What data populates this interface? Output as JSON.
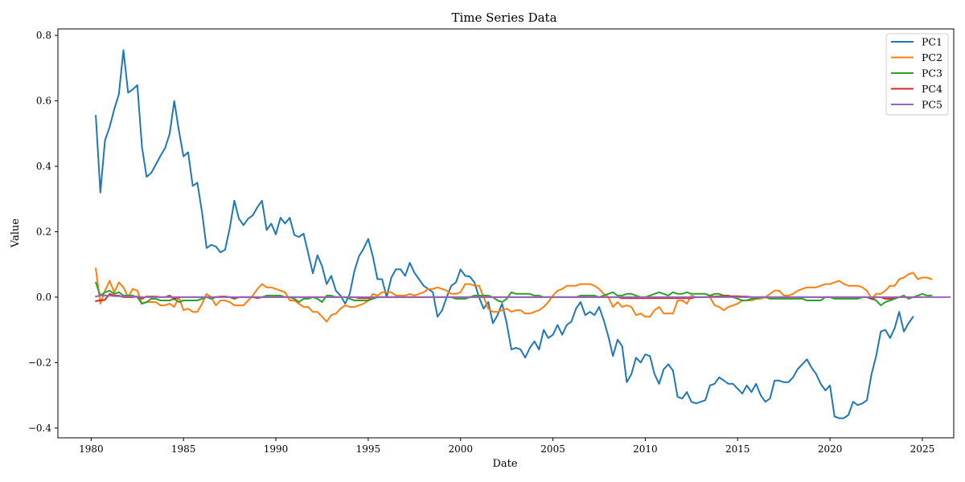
{
  "chart_data": {
    "type": "line",
    "title": "Time Series Data",
    "xlabel": "Date",
    "ylabel": "Value",
    "x_date_range": [
      "1980-04-01",
      "2024-07-01"
    ],
    "x_step": "quarter",
    "xlim": [
      1978.2,
      2026.7
    ],
    "ylim": [
      -0.43,
      0.82
    ],
    "xticks": [
      1980,
      1985,
      1990,
      1995,
      2000,
      2005,
      2010,
      2015,
      2020,
      2025
    ],
    "xtick_labels": [
      "1980",
      "1985",
      "1990",
      "1995",
      "2000",
      "2005",
      "2010",
      "2015",
      "2020",
      "2025"
    ],
    "yticks": [
      -0.4,
      -0.2,
      0.0,
      0.2,
      0.4,
      0.6,
      0.8
    ],
    "ytick_labels": [
      "−0.4",
      "−0.2",
      "0.0",
      "0.2",
      "0.4",
      "0.6",
      "0.8"
    ],
    "grid": false,
    "legend_position": "top-right",
    "series": [
      {
        "name": "PC1",
        "color": "#1f77b4",
        "values": [
          0.555,
          0.32,
          0.48,
          0.52,
          0.575,
          0.62,
          0.755,
          0.625,
          0.635,
          0.648,
          0.46,
          0.368,
          0.38,
          0.405,
          0.432,
          0.455,
          0.5,
          0.6,
          0.51,
          0.43,
          0.443,
          0.34,
          0.35,
          0.26,
          0.15,
          0.16,
          0.155,
          0.137,
          0.145,
          0.21,
          0.295,
          0.24,
          0.22,
          0.24,
          0.25,
          0.275,
          0.295,
          0.205,
          0.225,
          0.192,
          0.243,
          0.225,
          0.243,
          0.19,
          0.184,
          0.194,
          0.135,
          0.073,
          0.128,
          0.095,
          0.04,
          0.065,
          0.02,
          0.005,
          -0.02,
          0.01,
          0.08,
          0.125,
          0.148,
          0.178,
          0.125,
          0.055,
          0.055,
          0.0,
          0.06,
          0.085,
          0.085,
          0.065,
          0.105,
          0.075,
          0.055,
          0.035,
          0.025,
          0.015,
          -0.06,
          -0.04,
          0.0,
          0.035,
          0.045,
          0.085,
          0.065,
          0.063,
          0.045,
          0.0,
          -0.035,
          -0.015,
          -0.08,
          -0.055,
          -0.02,
          -0.08,
          -0.16,
          -0.155,
          -0.16,
          -0.185,
          -0.155,
          -0.135,
          -0.16,
          -0.1,
          -0.125,
          -0.115,
          -0.085,
          -0.115,
          -0.085,
          -0.075,
          -0.035,
          -0.015,
          -0.055,
          -0.045,
          -0.055,
          -0.03,
          -0.07,
          -0.12,
          -0.18,
          -0.13,
          -0.15,
          -0.26,
          -0.235,
          -0.185,
          -0.2,
          -0.175,
          -0.18,
          -0.235,
          -0.265,
          -0.22,
          -0.205,
          -0.225,
          -0.305,
          -0.31,
          -0.29,
          -0.32,
          -0.325,
          -0.32,
          -0.315,
          -0.27,
          -0.265,
          -0.245,
          -0.255,
          -0.265,
          -0.265,
          -0.28,
          -0.295,
          -0.27,
          -0.29,
          -0.265,
          -0.3,
          -0.32,
          -0.31,
          -0.255,
          -0.255,
          -0.26,
          -0.26,
          -0.245,
          -0.22,
          -0.205,
          -0.19,
          -0.215,
          -0.235,
          -0.265,
          -0.285,
          -0.27,
          -0.365,
          -0.37,
          -0.37,
          -0.36,
          -0.32,
          -0.33,
          -0.325,
          -0.315,
          -0.235,
          -0.18,
          -0.105,
          -0.1,
          -0.125,
          -0.095,
          -0.045,
          -0.105,
          -0.08,
          -0.06
        ]
      },
      {
        "name": "PC2",
        "color": "#ff7f0e",
        "values": [
          0.088,
          -0.02,
          0.02,
          0.05,
          0.015,
          0.045,
          0.03,
          0.0,
          0.025,
          0.02,
          -0.02,
          -0.015,
          -0.015,
          -0.015,
          -0.025,
          -0.025,
          -0.02,
          -0.03,
          0.0,
          -0.04,
          -0.035,
          -0.045,
          -0.045,
          -0.02,
          0.01,
          0.0,
          -0.025,
          -0.01,
          -0.01,
          -0.015,
          -0.025,
          -0.025,
          -0.025,
          -0.01,
          0.005,
          0.025,
          0.04,
          0.03,
          0.03,
          0.025,
          0.02,
          0.015,
          -0.01,
          -0.01,
          -0.02,
          -0.03,
          -0.03,
          -0.045,
          -0.045,
          -0.06,
          -0.075,
          -0.055,
          -0.05,
          -0.035,
          -0.025,
          -0.03,
          -0.03,
          -0.025,
          -0.02,
          -0.01,
          0.01,
          0.005,
          0.015,
          0.015,
          0.015,
          0.005,
          0.005,
          0.005,
          0.01,
          0.005,
          0.01,
          0.015,
          0.025,
          0.025,
          0.03,
          0.025,
          0.02,
          0.01,
          0.01,
          0.015,
          0.04,
          0.04,
          0.035,
          0.035,
          0.0,
          -0.035,
          -0.045,
          -0.045,
          -0.04,
          -0.035,
          -0.045,
          -0.04,
          -0.04,
          -0.05,
          -0.05,
          -0.045,
          -0.04,
          -0.03,
          -0.015,
          0.005,
          0.02,
          0.025,
          0.035,
          0.035,
          0.035,
          0.04,
          0.04,
          0.04,
          0.035,
          0.025,
          0.01,
          0.0,
          -0.03,
          -0.015,
          -0.03,
          -0.025,
          -0.03,
          -0.055,
          -0.05,
          -0.06,
          -0.06,
          -0.04,
          -0.03,
          -0.05,
          -0.05,
          -0.05,
          -0.01,
          -0.01,
          -0.02,
          0.005,
          0.0,
          0.0,
          0.0,
          0.0,
          -0.025,
          -0.03,
          -0.04,
          -0.03,
          -0.025,
          -0.02,
          -0.01,
          -0.01,
          -0.01,
          -0.005,
          -0.005,
          0.0,
          0.01,
          0.02,
          0.02,
          0.005,
          0.005,
          0.01,
          0.02,
          0.025,
          0.03,
          0.03,
          0.03,
          0.035,
          0.04,
          0.04,
          0.045,
          0.05,
          0.04,
          0.035,
          0.035,
          0.035,
          0.03,
          0.02,
          -0.005,
          0.01,
          0.01,
          0.02,
          0.035,
          0.035,
          0.055,
          0.06,
          0.07,
          0.075,
          0.055,
          0.06,
          0.06,
          0.055
        ]
      },
      {
        "name": "PC3",
        "color": "#2ca02c",
        "values": [
          0.045,
          0.005,
          0.015,
          0.02,
          0.01,
          0.015,
          0.005,
          0.005,
          0.005,
          0.0,
          -0.02,
          -0.015,
          -0.005,
          -0.005,
          -0.01,
          -0.01,
          -0.01,
          -0.005,
          -0.015,
          -0.01,
          -0.01,
          -0.01,
          -0.01,
          -0.005,
          0.0,
          -0.005,
          0.0,
          0.0,
          0.0,
          0.0,
          -0.005,
          0.0,
          0.0,
          0.0,
          0.0,
          0.0,
          0.0,
          0.005,
          0.005,
          0.005,
          0.005,
          0.0,
          0.0,
          -0.005,
          -0.015,
          -0.005,
          -0.005,
          0.0,
          -0.005,
          -0.015,
          0.005,
          0.005,
          0.0,
          0.0,
          0.0,
          -0.005,
          -0.01,
          -0.01,
          -0.01,
          -0.01,
          -0.005,
          0.0,
          0.0,
          0.0,
          0.0,
          0.0,
          0.0,
          0.0,
          0.0,
          0.0,
          0.0,
          0.0,
          0.0,
          0.0,
          0.0,
          0.0,
          0.0,
          0.0,
          -0.005,
          -0.005,
          -0.005,
          0.0,
          0.005,
          0.005,
          0.005,
          0.005,
          0.0,
          -0.01,
          -0.015,
          -0.005,
          0.015,
          0.01,
          0.01,
          0.01,
          0.01,
          0.005,
          0.005,
          0.0,
          0.0,
          0.0,
          0.0,
          0.0,
          0.0,
          0.0,
          0.0,
          0.005,
          0.005,
          0.005,
          0.005,
          0.0,
          0.005,
          0.01,
          0.015,
          0.005,
          0.005,
          0.01,
          0.01,
          0.005,
          0.0,
          0.0,
          0.005,
          0.01,
          0.015,
          0.01,
          0.005,
          0.015,
          0.01,
          0.01,
          0.015,
          0.01,
          0.01,
          0.01,
          0.01,
          0.005,
          0.01,
          0.01,
          0.005,
          0.005,
          0.0,
          -0.005,
          -0.01,
          -0.01,
          -0.005,
          -0.005,
          0.0,
          0.0,
          -0.005,
          -0.005,
          -0.005,
          -0.005,
          -0.005,
          -0.005,
          -0.005,
          -0.005,
          -0.01,
          -0.01,
          -0.01,
          -0.01,
          0.0,
          0.0,
          -0.005,
          -0.005,
          -0.005,
          -0.005,
          -0.005,
          -0.005,
          0.0,
          0.0,
          -0.005,
          -0.01,
          -0.025,
          -0.015,
          -0.01,
          -0.005,
          0.0,
          0.005,
          -0.005,
          0.0,
          0.005,
          0.01,
          0.005,
          0.005
        ]
      },
      {
        "name": "PC4",
        "color": "#d62728",
        "values": [
          -0.012,
          -0.01,
          -0.008,
          0.01,
          0.005,
          0.005,
          0.0,
          0.0,
          0.0,
          0.002,
          -0.005,
          0.002,
          0.002,
          0.002,
          0.0,
          0.0,
          0.005,
          -0.005,
          0.0,
          0.0,
          0.0,
          0.0,
          0.0,
          0.0,
          0.0,
          0.0,
          0.0,
          0.002,
          0.002,
          0.0,
          -0.003,
          0.0,
          0.0,
          0.0,
          0.0,
          -0.003,
          0.0,
          0.0,
          0.0,
          0.0,
          0.0,
          0.0,
          0.0,
          0.0,
          0.0,
          0.0,
          0.0,
          0.0,
          0.0,
          0.0,
          0.0,
          0.0,
          0.0,
          0.0,
          0.0,
          0.0,
          0.0,
          -0.003,
          -0.003,
          -0.003,
          0.0,
          0.0,
          0.0,
          0.0,
          0.0,
          0.0,
          0.0,
          0.0,
          0.0,
          0.0,
          0.0,
          0.0,
          0.0,
          0.0,
          0.0,
          0.0,
          0.0,
          0.0,
          0.0,
          0.0,
          0.0,
          0.0,
          0.0,
          0.0,
          0.0,
          0.0,
          0.0,
          0.0,
          0.0,
          0.0,
          0.0,
          0.0,
          0.0,
          0.0,
          0.0,
          0.0,
          0.0,
          0.0,
          0.0,
          0.0,
          0.0,
          0.0,
          0.0,
          0.0,
          0.0,
          0.0,
          0.0,
          0.0,
          0.0,
          0.0,
          0.0,
          0.0,
          0.0,
          0.0,
          -0.003,
          -0.003,
          -0.003,
          -0.003,
          -0.003,
          -0.003,
          -0.003,
          -0.003,
          -0.003,
          -0.003,
          -0.003,
          -0.003,
          -0.003,
          -0.003,
          -0.003,
          -0.003,
          0.0,
          0.0,
          0.0,
          0.002,
          0.002,
          0.003,
          0.003,
          0.003,
          0.003,
          0.003,
          0.002,
          0.002,
          0.0,
          0.0,
          0.0,
          0.0,
          0.0,
          0.0,
          0.0,
          0.0,
          0.0,
          0.0,
          0.0,
          0.0,
          0.0,
          0.0,
          0.0,
          0.0,
          0.0,
          0.0,
          0.0,
          0.0,
          0.0,
          0.0,
          0.0,
          0.0,
          0.0,
          0.0,
          -0.005,
          0.0,
          0.0,
          -0.005,
          -0.005,
          0.0,
          0.0,
          0.0,
          0.0,
          0.0,
          0.0,
          0.0
        ]
      },
      {
        "name": "PC5",
        "color": "#9467bd",
        "values": [
          0.002,
          0.005,
          0.005,
          0.005,
          0.003,
          0.003,
          0.002,
          0.002,
          0.002,
          0.002,
          0.0,
          0.0,
          0.0,
          0.0,
          0.0,
          0.0,
          0.0,
          0.0,
          0.0,
          0.0,
          0.0,
          0.0,
          0.0,
          0.0,
          0.0,
          0.0,
          0.0,
          0.0,
          0.0,
          0.0,
          0.0,
          0.0,
          0.0,
          0.0,
          0.0,
          0.0,
          0.0,
          0.0,
          0.0,
          0.0,
          0.0,
          0.0,
          0.0,
          0.0,
          0.0,
          0.0,
          0.0,
          0.0,
          0.0,
          0.0,
          0.0,
          0.0,
          0.0,
          0.0,
          0.0,
          0.0,
          0.0,
          0.0,
          0.0,
          0.0,
          0.0,
          0.0,
          0.0,
          0.0,
          0.0,
          0.0,
          0.0,
          0.0,
          0.0,
          0.0,
          0.0,
          0.0,
          0.0,
          0.0,
          0.0,
          0.0,
          0.0,
          0.0,
          0.0,
          0.0,
          0.0,
          0.0,
          0.0,
          0.0,
          0.0,
          0.0,
          0.0,
          0.0,
          0.0,
          0.0,
          0.0,
          0.0,
          0.0,
          0.0,
          0.0,
          0.0,
          0.0,
          0.0,
          0.0,
          0.0,
          0.0,
          0.0,
          0.0,
          0.0,
          0.0,
          0.0,
          0.0,
          0.0,
          0.0,
          0.0,
          0.0,
          0.0,
          0.0,
          0.0,
          0.0,
          0.0,
          0.0,
          0.0,
          0.0,
          0.0,
          0.0,
          0.0,
          0.0,
          0.0,
          0.0,
          0.0,
          0.0,
          0.0,
          0.0,
          0.0,
          0.0,
          0.0,
          0.0,
          0.0,
          0.0,
          0.0,
          0.0,
          0.0,
          0.0,
          0.0,
          0.0,
          0.0,
          0.0,
          0.0,
          0.0,
          0.0,
          0.0,
          0.0,
          0.0,
          0.0,
          0.0,
          0.0,
          0.0,
          0.0,
          0.0,
          0.0,
          0.0,
          0.0,
          0.0,
          0.0,
          0.0,
          0.0,
          0.0,
          0.0,
          0.0,
          0.0,
          0.0,
          0.0,
          0.0,
          0.0,
          0.0,
          0.0,
          0.0,
          0.0,
          0.0,
          0.0,
          0.0,
          0.0,
          0.0,
          0.0,
          0.0,
          0.0,
          0.0,
          0.0,
          0.0,
          0.0
        ]
      }
    ]
  }
}
